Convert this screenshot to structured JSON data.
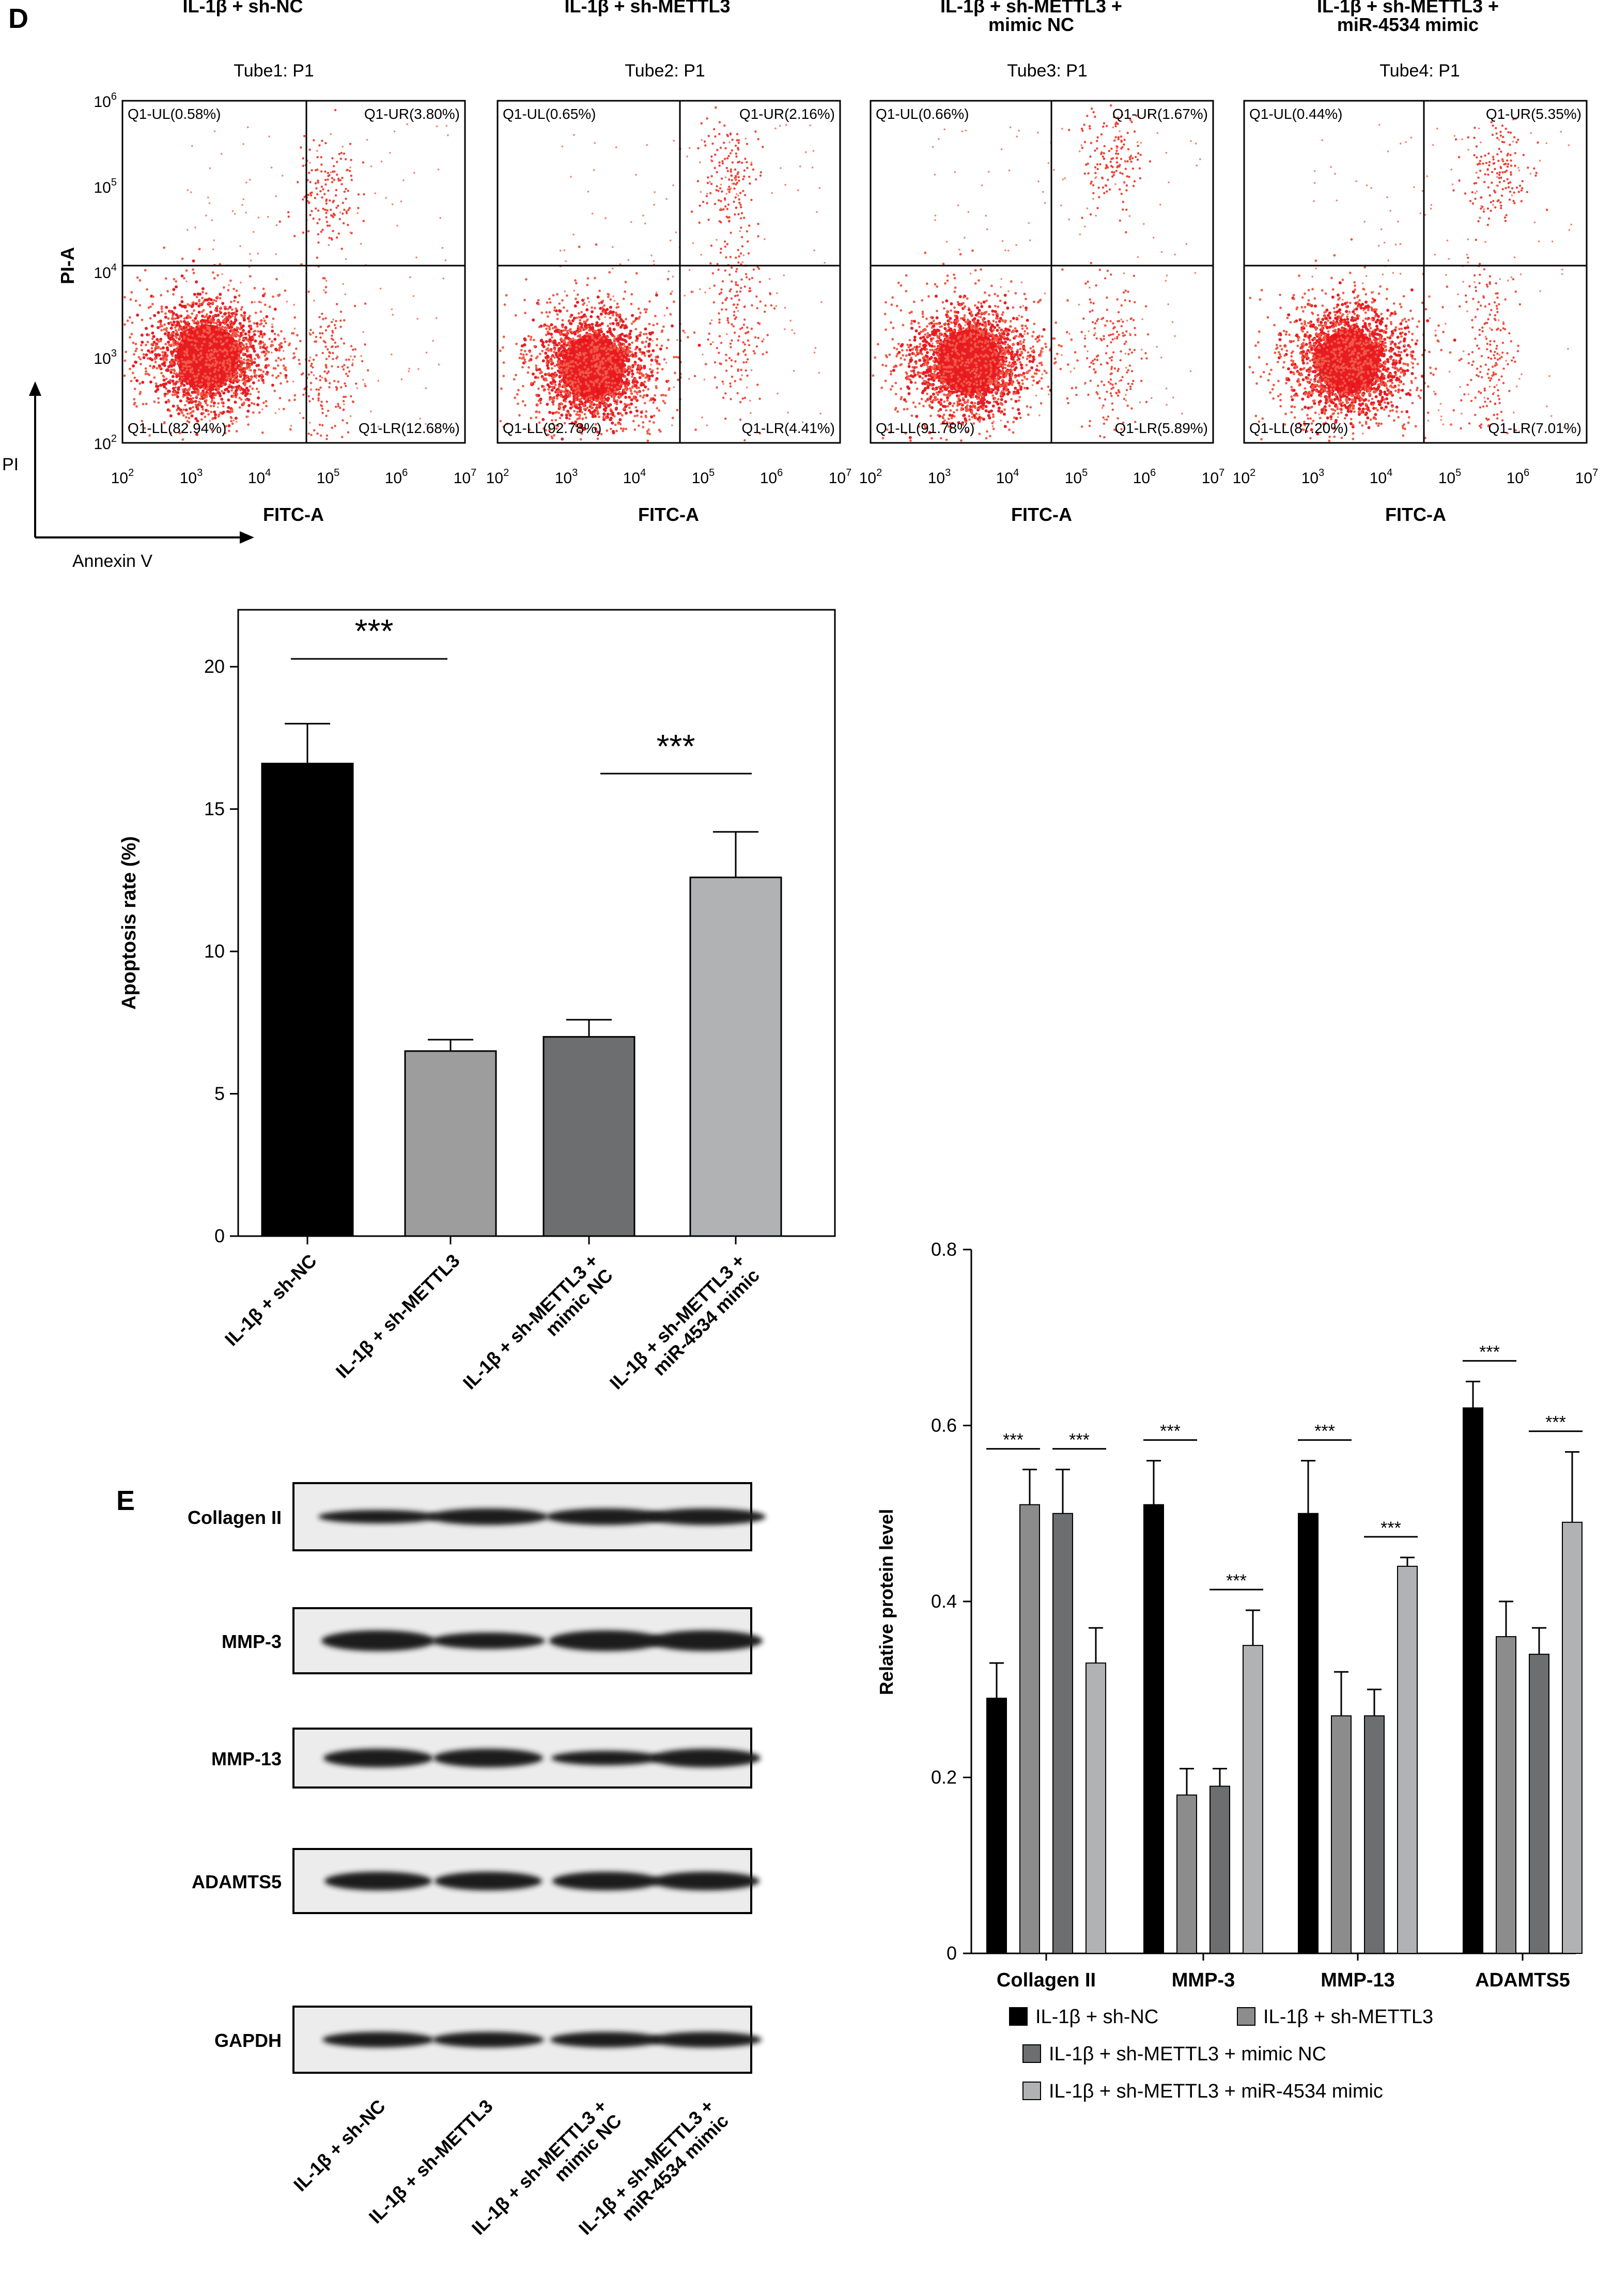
{
  "panel_d": {
    "letter": "D",
    "axis_hint": {
      "y": "PI",
      "x": "Annexin V"
    },
    "flow_plots": [
      {
        "title": "IL-1β + sh-NC",
        "title2": "",
        "tube": "Tube1: P1",
        "q": {
          "ul": "Q1-UL(0.58%)",
          "ur": "Q1-UR(3.80%)",
          "ll": "Q1-LL(82.94%)",
          "lr": "Q1-LR(12.68%)"
        }
      },
      {
        "title": "IL-1β + sh-METTL3",
        "title2": "",
        "tube": "Tube2: P1",
        "q": {
          "ul": "Q1-UL(0.65%)",
          "ur": "Q1-UR(2.16%)",
          "ll": "Q1-LL(92.78%)",
          "lr": "Q1-LR(4.41%)"
        }
      },
      {
        "title": "IL-1β + sh-METTL3 +",
        "title2": "mimic NC",
        "tube": "Tube3: P1",
        "q": {
          "ul": "Q1-UL(0.66%)",
          "ur": "Q1-UR(1.67%)",
          "ll": "Q1-LL(91.78%)",
          "lr": "Q1-LR(5.89%)"
        }
      },
      {
        "title": "IL-1β + sh-METTL3 +",
        "title2": "miR-4534 mimic",
        "tube": "Tube4: P1",
        "q": {
          "ul": "Q1-UL(0.44%)",
          "ur": "Q1-UR(5.35%)",
          "ll": "Q1-LL(87.20%)",
          "lr": "Q1-LR(7.01%)"
        }
      }
    ],
    "flow_axes": {
      "ylabel": "PI-A",
      "xlabel": "FITC-A"
    }
  },
  "panel_e": {
    "letter": "E",
    "blot_rows": [
      "Collagen II",
      "MMP-3",
      "MMP-13",
      "ADAMTS5",
      "GAPDH"
    ],
    "blot_lanes": [
      {
        "line1": "IL-1β + sh-NC",
        "line2": ""
      },
      {
        "line1": "IL-1β + sh-METTL3",
        "line2": ""
      },
      {
        "line1": "IL-1β + sh-METTL3 +",
        "line2": "mimic NC"
      },
      {
        "line1": "IL-1β + sh-METTL3 +",
        "line2": "miR-4534 mimic"
      }
    ]
  },
  "chart_data": [
    {
      "type": "bar",
      "title": "",
      "ylabel": "Apoptosis rate (%)",
      "xlabel": "",
      "ylim": [
        0,
        22
      ],
      "yticks": [
        0,
        5,
        10,
        15,
        20
      ],
      "categories": [
        "IL-1β + sh-NC",
        "IL-1β + sh-METTL3",
        "IL-1β + sh-METTL3 + mimic NC",
        "IL-1β + sh-METTL3 + miR-4534 mimic"
      ],
      "tick_lines": [
        [
          "IL-1β + sh-NC"
        ],
        [
          "IL-1β + sh-METTL3"
        ],
        [
          "IL-1β + sh-METTL3 +",
          "mimic NC"
        ],
        [
          "IL-1β + sh-METTL3 +",
          "miR-4534 mimic"
        ]
      ],
      "values": [
        16.6,
        6.5,
        7.0,
        12.6
      ],
      "errors": [
        1.4,
        0.4,
        0.6,
        1.6
      ],
      "colors": [
        "#000000",
        "#9d9d9d",
        "#6d6e70",
        "#b0b2b4"
      ],
      "significance": [
        {
          "from": 0,
          "to": 1,
          "label": "***"
        },
        {
          "from": 2,
          "to": 3,
          "label": "***"
        }
      ]
    },
    {
      "type": "bar",
      "title": "",
      "ylabel": "Relative protein level",
      "xlabel": "",
      "ylim": [
        0,
        0.8
      ],
      "yticks": [
        "0",
        "0.2",
        "0.4",
        "0.6",
        "0.8"
      ],
      "categories": [
        "Collagen II",
        "MMP-3",
        "MMP-13",
        "ADAMTS5"
      ],
      "series": [
        {
          "name": "IL-1β + sh-NC",
          "color": "#000000",
          "values": [
            0.29,
            0.51,
            0.5,
            0.62
          ],
          "errors": [
            0.04,
            0.05,
            0.06,
            0.03
          ]
        },
        {
          "name": "IL-1β + sh-METTL3",
          "color": "#8c8c8c",
          "values": [
            0.51,
            0.18,
            0.27,
            0.36
          ],
          "errors": [
            0.04,
            0.03,
            0.05,
            0.04
          ]
        },
        {
          "name": "IL-1β + sh-METTL3 + mimic NC",
          "color": "#6d6e70",
          "values": [
            0.5,
            0.19,
            0.27,
            0.34
          ],
          "errors": [
            0.05,
            0.02,
            0.03,
            0.03
          ]
        },
        {
          "name": "IL-1β + sh-METTL3 + miR-4534 mimic",
          "color": "#b0b2b4",
          "values": [
            0.33,
            0.35,
            0.44,
            0.49
          ],
          "errors": [
            0.04,
            0.04,
            0.01,
            0.08
          ]
        }
      ],
      "significance_label": "***",
      "significance": [
        {
          "group": 0,
          "from": 0,
          "to": 1
        },
        {
          "group": 0,
          "from": 2,
          "to": 3
        },
        {
          "group": 1,
          "from": 0,
          "to": 1
        },
        {
          "group": 1,
          "from": 2,
          "to": 3
        },
        {
          "group": 2,
          "from": 0,
          "to": 1
        },
        {
          "group": 2,
          "from": 2,
          "to": 3
        },
        {
          "group": 3,
          "from": 0,
          "to": 1
        },
        {
          "group": 3,
          "from": 2,
          "to": 3
        }
      ]
    }
  ]
}
